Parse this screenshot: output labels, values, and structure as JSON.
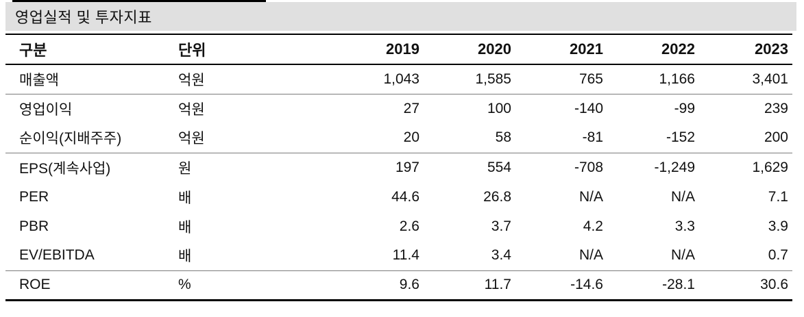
{
  "table": {
    "title": "영업실적 및 투자지표",
    "columns": [
      "구분",
      "단위",
      "2019",
      "2020",
      "2021",
      "2022",
      "2023"
    ],
    "rows": [
      {
        "label": "매출액",
        "unit": "억원",
        "values": [
          "1,043",
          "1,585",
          "765",
          "1,166",
          "3,401"
        ]
      },
      {
        "label": "영업이익",
        "unit": "억원",
        "values": [
          "27",
          "100",
          "-140",
          "-99",
          "239"
        ]
      },
      {
        "label": "순이익(지배주주)",
        "unit": "억원",
        "values": [
          "20",
          "58",
          "-81",
          "-152",
          "200"
        ]
      },
      {
        "label": "EPS(계속사업)",
        "unit": "원",
        "values": [
          "197",
          "554",
          "-708",
          "-1,249",
          "1,629"
        ]
      },
      {
        "label": "PER",
        "unit": "배",
        "values": [
          "44.6",
          "26.8",
          "N/A",
          "N/A",
          "7.1"
        ]
      },
      {
        "label": "PBR",
        "unit": "배",
        "values": [
          "2.6",
          "3.7",
          "4.2",
          "3.3",
          "3.9"
        ]
      },
      {
        "label": "EV/EBITDA",
        "unit": "배",
        "values": [
          "11.4",
          "3.4",
          "N/A",
          "N/A",
          "0.7"
        ]
      },
      {
        "label": "ROE",
        "unit": "%",
        "values": [
          "9.6",
          "11.7",
          "-14.6",
          "-28.1",
          "30.6"
        ]
      }
    ],
    "colors": {
      "title_bar_bg": "#e0e0e0",
      "rule_dark": "#000000",
      "rule_light": "#7a7a7a",
      "text": "#111111"
    }
  }
}
